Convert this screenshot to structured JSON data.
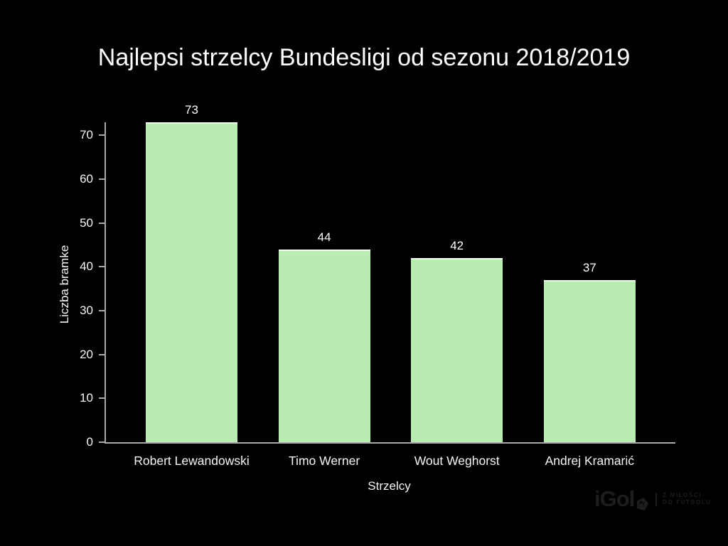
{
  "page": {
    "background_color": "#000000",
    "text_color": "#ffffff"
  },
  "chart_data": {
    "type": "bar",
    "title": "Najlepsi strzelcy Bundesligi od sezonu 2018/2019",
    "categories": [
      "Robert Lewandowski",
      "Timo Werner",
      "Wout Weghorst",
      "Andrej Kramarić"
    ],
    "values": [
      73,
      44,
      42,
      37
    ],
    "xlabel": "Strzelcy",
    "ylabel": "Liczba bramke",
    "ylim": [
      0,
      73
    ],
    "yticks": [
      0,
      10,
      20,
      30,
      40,
      50,
      60,
      70
    ],
    "grid": false,
    "legend": false,
    "value_labels_shown": true,
    "bar_color": "#b9ecb1",
    "axis_color": "#a9a9a9",
    "label_color": "#f5f5f5"
  },
  "watermark": {
    "brand": "iGol",
    "badge": "PL",
    "tagline_line1": "Z MIŁOŚCI",
    "tagline_line2": "DO FUTBOLU",
    "color": "#1d1d1d"
  }
}
